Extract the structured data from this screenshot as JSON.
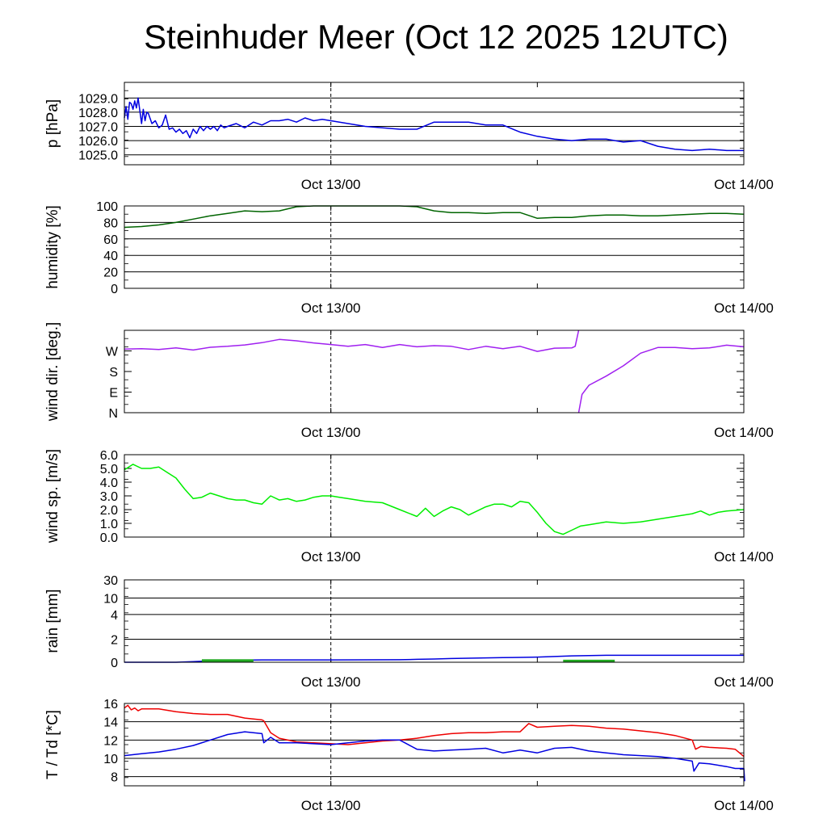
{
  "title": "Steinhuder Meer (Oct 12 2025 12UTC)",
  "chart_data": [
    {
      "type": "line",
      "ylabel": "p [hPa]",
      "x_ticks": [
        "Oct 13/00",
        "Oct 14/00"
      ],
      "x_range_hours": [
        0,
        36
      ],
      "ylim": [
        1024.3,
        1030.1
      ],
      "y_ticks": [
        {
          "v": 1025.0,
          "label": "1025.0"
        },
        {
          "v": 1026.0,
          "label": "1026.0"
        },
        {
          "v": 1027.0,
          "label": "1027.0"
        },
        {
          "v": 1028.0,
          "label": "1028.0"
        },
        {
          "v": 1029.0,
          "label": "1029.0"
        }
      ],
      "grid": true,
      "series": [
        {
          "color": "#0000e0",
          "x": [
            0,
            0.1,
            0.2,
            0.3,
            0.4,
            0.5,
            0.6,
            0.7,
            0.8,
            1.0,
            1.1,
            1.2,
            1.3,
            1.4,
            1.6,
            1.8,
            2.0,
            2.2,
            2.4,
            2.6,
            2.8,
            3.0,
            3.2,
            3.4,
            3.6,
            3.8,
            4.0,
            4.2,
            4.4,
            4.6,
            4.8,
            5.0,
            5.2,
            5.4,
            5.6,
            5.8,
            6,
            6.5,
            7,
            7.5,
            8,
            8.5,
            9,
            9.5,
            10,
            10.5,
            11,
            11.5,
            12,
            13,
            14,
            15,
            16,
            17,
            18,
            19,
            20,
            21,
            22,
            23,
            24,
            25,
            26,
            27,
            28,
            29,
            30,
            31,
            32,
            33,
            34,
            35,
            36
          ],
          "y": [
            1027.6,
            1028.4,
            1027.5,
            1028.7,
            1028.6,
            1028.2,
            1028.8,
            1028.3,
            1029.0,
            1027.2,
            1028.2,
            1027.4,
            1028.0,
            1027.9,
            1027.2,
            1027.4,
            1026.9,
            1027.1,
            1027.8,
            1026.8,
            1026.9,
            1026.6,
            1026.8,
            1026.5,
            1026.7,
            1026.2,
            1026.8,
            1026.5,
            1027.0,
            1026.7,
            1027.0,
            1026.8,
            1027.0,
            1026.7,
            1027.1,
            1026.9,
            1027.0,
            1027.2,
            1026.9,
            1027.3,
            1027.1,
            1027.4,
            1027.4,
            1027.5,
            1027.3,
            1027.6,
            1027.4,
            1027.5,
            1027.4,
            1027.2,
            1027.0,
            1026.9,
            1026.8,
            1026.8,
            1027.3,
            1027.3,
            1027.3,
            1027.1,
            1027.1,
            1026.6,
            1026.3,
            1026.1,
            1026.0,
            1026.1,
            1026.1,
            1025.9,
            1026.0,
            1025.6,
            1025.4,
            1025.3,
            1025.4,
            1025.3,
            1025.3
          ]
        }
      ]
    },
    {
      "type": "line",
      "ylabel": "humidity [%]",
      "x_ticks": [
        "Oct 13/00",
        "Oct 14/00"
      ],
      "x_range_hours": [
        0,
        36
      ],
      "ylim": [
        0,
        100
      ],
      "y_ticks": [
        {
          "v": 0,
          "label": "0"
        },
        {
          "v": 20,
          "label": "20"
        },
        {
          "v": 40,
          "label": "40"
        },
        {
          "v": 60,
          "label": "60"
        },
        {
          "v": 80,
          "label": "80"
        },
        {
          "v": 100,
          "label": "100"
        }
      ],
      "grid": true,
      "series": [
        {
          "color": "#006400",
          "x": [
            0,
            1,
            2,
            3,
            4,
            5,
            6,
            7,
            8,
            9,
            10,
            11,
            12,
            13,
            14,
            15,
            16,
            17,
            18,
            19,
            20,
            21,
            22,
            23,
            24,
            25,
            26,
            27,
            28,
            29,
            30,
            31,
            32,
            33,
            34,
            35,
            36
          ],
          "y": [
            74,
            75,
            77,
            80,
            84,
            88,
            91,
            94,
            93,
            94,
            99,
            100,
            100,
            100,
            100,
            100,
            100,
            99,
            94,
            92,
            92,
            91,
            92,
            92,
            85,
            86,
            86,
            88,
            89,
            89,
            88,
            88,
            89,
            90,
            91,
            91,
            90
          ]
        }
      ]
    },
    {
      "type": "scatter",
      "ylabel": "wind dir. [deg.]",
      "x_ticks": [
        "Oct 13/00",
        "Oct 14/00"
      ],
      "x_range_hours": [
        0,
        36
      ],
      "ylim": [
        0,
        360
      ],
      "y_ticks": [
        {
          "v": 0,
          "label": "N"
        },
        {
          "v": 90,
          "label": "E"
        },
        {
          "v": 180,
          "label": "S"
        },
        {
          "v": 270,
          "label": "W"
        }
      ],
      "grid": false,
      "series": [
        {
          "color": "#a020f0",
          "x": [
            0,
            1,
            2,
            3,
            4,
            5,
            6,
            7,
            8,
            9,
            10,
            11,
            12,
            13,
            14,
            15,
            16,
            17,
            18,
            19,
            20,
            21,
            22,
            23,
            24,
            25,
            26,
            26.2,
            26.4
          ],
          "y": [
            278,
            280,
            276,
            283,
            274,
            286,
            290,
            296,
            306,
            320,
            314,
            305,
            298,
            290,
            298,
            285,
            298,
            288,
            293,
            290,
            276,
            290,
            280,
            290,
            268,
            282,
            283,
            290,
            360
          ]
        },
        {
          "color": "#a020f0",
          "x": [
            26.4,
            26.6,
            27,
            28,
            29,
            30,
            31,
            32,
            33,
            34,
            35,
            36
          ],
          "y": [
            0,
            80,
            120,
            160,
            205,
            260,
            285,
            285,
            280,
            283,
            295,
            288
          ]
        }
      ]
    },
    {
      "type": "line",
      "ylabel": "wind sp. [m/s]",
      "x_ticks": [
        "Oct 13/00",
        "Oct 14/00"
      ],
      "x_range_hours": [
        0,
        36
      ],
      "ylim": [
        0,
        6.0
      ],
      "y_ticks": [
        {
          "v": 0,
          "label": "0.0"
        },
        {
          "v": 1,
          "label": "1.0"
        },
        {
          "v": 2,
          "label": "2.0"
        },
        {
          "v": 3,
          "label": "3.0"
        },
        {
          "v": 4,
          "label": "4.0"
        },
        {
          "v": 5,
          "label": "5.0"
        },
        {
          "v": 6,
          "label": "6.0"
        }
      ],
      "grid": false,
      "series": [
        {
          "color": "#00ee00",
          "x": [
            0,
            0.5,
            1,
            1.5,
            2,
            2.5,
            3,
            3.5,
            4,
            4.5,
            5,
            5.5,
            6,
            6.5,
            7,
            7.5,
            8,
            8.5,
            9,
            9.5,
            10,
            10.5,
            11,
            11.5,
            12,
            12.5,
            13,
            14,
            15,
            16,
            17,
            17.5,
            18,
            18.5,
            19,
            19.5,
            20,
            20.5,
            21,
            21.5,
            22,
            22.5,
            23,
            23.5,
            24,
            24.5,
            25,
            25.5,
            26,
            26.5,
            27,
            28,
            29,
            30,
            31,
            32,
            33,
            33.5,
            34,
            34.5,
            35,
            36
          ],
          "y": [
            4.9,
            5.3,
            5.0,
            5.0,
            5.1,
            4.7,
            4.3,
            3.5,
            2.8,
            2.9,
            3.2,
            3.0,
            2.8,
            2.7,
            2.7,
            2.5,
            2.4,
            3.0,
            2.7,
            2.8,
            2.6,
            2.7,
            2.9,
            3.0,
            3.0,
            2.9,
            2.8,
            2.6,
            2.5,
            2.0,
            1.5,
            2.1,
            1.5,
            1.9,
            2.2,
            2.0,
            1.6,
            1.9,
            2.2,
            2.4,
            2.4,
            2.2,
            2.6,
            2.5,
            1.8,
            1.0,
            0.4,
            0.2,
            0.5,
            0.8,
            0.9,
            1.1,
            1.0,
            1.1,
            1.3,
            1.5,
            1.7,
            1.9,
            1.6,
            1.8,
            1.9,
            2.0
          ]
        }
      ]
    },
    {
      "type": "area",
      "ylabel": "rain [mm]",
      "x_ticks": [
        "Oct 13/00",
        "Oct 14/00"
      ],
      "x_range_hours": [
        0,
        36
      ],
      "ylim": [
        0,
        30
      ],
      "y_ticks": [
        {
          "v": 0,
          "label": "0"
        },
        {
          "v": 2,
          "label": "2"
        },
        {
          "v": 4,
          "label": "4"
        },
        {
          "v": 10,
          "label": "10"
        },
        {
          "v": 30,
          "label": "30"
        }
      ],
      "grid": true,
      "series": [
        {
          "name_hidden": true,
          "color": "#0000e0",
          "x": [
            0,
            3,
            4,
            5,
            6,
            8,
            10,
            12,
            14,
            16,
            17,
            18,
            19,
            20,
            21,
            22,
            23,
            24,
            25,
            26,
            27,
            28,
            30,
            32,
            34,
            36
          ],
          "y": [
            0,
            0,
            0.05,
            0.12,
            0.17,
            0.2,
            0.2,
            0.2,
            0.21,
            0.22,
            0.25,
            0.28,
            0.32,
            0.35,
            0.38,
            0.4,
            0.42,
            0.45,
            0.5,
            0.55,
            0.58,
            0.6,
            0.6,
            0.6,
            0.6,
            0.6
          ]
        },
        {
          "color": "#22aa22",
          "bars": [
            {
              "x0": 4.5,
              "x1": 7.5,
              "y": 0.12
            },
            {
              "x0": 25.5,
              "x1": 28.5,
              "y": 0.08
            }
          ]
        }
      ]
    },
    {
      "type": "line",
      "ylabel": "T / Td [*C]",
      "x_ticks": [
        "Oct 13/00",
        "Oct 14/00"
      ],
      "x_range_hours": [
        0,
        36
      ],
      "ylim": [
        7,
        16
      ],
      "y_ticks": [
        {
          "v": 8,
          "label": "8"
        },
        {
          "v": 10,
          "label": "10"
        },
        {
          "v": 12,
          "label": "12"
        },
        {
          "v": 14,
          "label": "14"
        },
        {
          "v": 16,
          "label": "16"
        }
      ],
      "grid": true,
      "series": [
        {
          "color": "#ee0000",
          "x": [
            0,
            0.2,
            0.4,
            0.6,
            0.8,
            1,
            2,
            3,
            4,
            5,
            6,
            7,
            8,
            8.1,
            8.5,
            9,
            10,
            11,
            12,
            13,
            14,
            15,
            16,
            17,
            18,
            19,
            20,
            21,
            22,
            23,
            23.5,
            24,
            25,
            26,
            27,
            28,
            29,
            30,
            31,
            32,
            33,
            33.2,
            33.5,
            34,
            35,
            35.5,
            36
          ],
          "y": [
            15.5,
            15.8,
            15.3,
            15.5,
            15.2,
            15.4,
            15.4,
            15.1,
            14.9,
            14.8,
            14.8,
            14.4,
            14.2,
            14.1,
            12.8,
            12.2,
            11.8,
            11.7,
            11.6,
            11.5,
            11.7,
            11.9,
            12.0,
            12.2,
            12.5,
            12.7,
            12.8,
            12.8,
            12.9,
            12.9,
            13.8,
            13.4,
            13.5,
            13.6,
            13.5,
            13.3,
            13.2,
            13.0,
            12.8,
            12.5,
            12.0,
            11.0,
            11.3,
            11.2,
            11.1,
            11.0,
            10.2
          ]
        },
        {
          "color": "#0000e0",
          "x": [
            0,
            1,
            2,
            3,
            4,
            5,
            6,
            7,
            8,
            8.1,
            8.5,
            9,
            10,
            11,
            12,
            13,
            14,
            15,
            16,
            17,
            18,
            19,
            20,
            21,
            22,
            23,
            24,
            25,
            26,
            27,
            28,
            29,
            30,
            31,
            32,
            33,
            33.1,
            33.4,
            34,
            35,
            35.5,
            36,
            36.05
          ],
          "y": [
            10.3,
            10.5,
            10.7,
            11.0,
            11.4,
            12.0,
            12.6,
            12.9,
            12.7,
            11.7,
            12.3,
            11.7,
            11.7,
            11.6,
            11.5,
            11.7,
            11.9,
            12.0,
            12.0,
            11.0,
            10.8,
            10.9,
            11.0,
            11.1,
            10.6,
            10.9,
            10.6,
            11.1,
            11.2,
            10.8,
            10.6,
            10.4,
            10.3,
            10.2,
            10.0,
            9.7,
            8.6,
            9.5,
            9.4,
            9.1,
            8.9,
            8.9,
            7.5
          ]
        }
      ]
    }
  ]
}
